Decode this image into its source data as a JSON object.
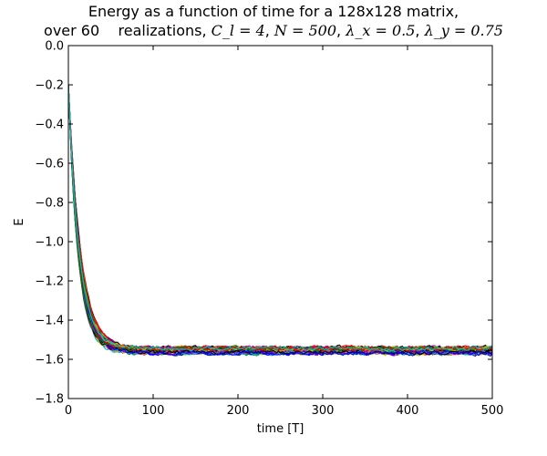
{
  "chart_data": {
    "type": "line",
    "title_line1": "Energy as a function of time for a 128x128 matrix,",
    "title_line2": {
      "prefix": "over 60    realizations, ",
      "params": [
        "C_l = 4",
        "N = 500",
        "λ_x = 0.5",
        "λ_y = 0.75"
      ]
    },
    "xlabel": "time [T]",
    "ylabel": "E",
    "xlim": [
      0,
      500
    ],
    "ylim": [
      -1.8,
      0.0
    ],
    "xticks": [
      0,
      100,
      200,
      300,
      400,
      500
    ],
    "xtick_labels": [
      "0",
      "100",
      "200",
      "300",
      "400",
      "500"
    ],
    "yticks": [
      0.0,
      -0.2,
      -0.4,
      -0.6,
      -0.8,
      -1.0,
      -1.2,
      -1.4,
      -1.6,
      -1.8
    ],
    "ytick_labels": [
      "0.0",
      "−0.2",
      "−0.4",
      "−0.6",
      "−0.8",
      "−1.0",
      "−1.2",
      "−1.4",
      "−1.6",
      "−1.8"
    ],
    "grid": false,
    "legend": "none",
    "num_series": 60,
    "series_model": {
      "initial_value": -0.2,
      "plateau_value": -1.555,
      "decay_time": 13,
      "noise_amplitude": 0.018
    },
    "representative_points": [
      {
        "x": 0,
        "y": -0.2
      },
      {
        "x": 5,
        "y": -0.68
      },
      {
        "x": 10,
        "y": -0.95
      },
      {
        "x": 20,
        "y": -1.25
      },
      {
        "x": 30,
        "y": -1.4
      },
      {
        "x": 50,
        "y": -1.5
      },
      {
        "x": 100,
        "y": -1.55
      },
      {
        "x": 200,
        "y": -1.56
      },
      {
        "x": 300,
        "y": -1.56
      },
      {
        "x": 400,
        "y": -1.56
      },
      {
        "x": 500,
        "y": -1.56
      }
    ],
    "series_colors": [
      "#0000ff",
      "#008000",
      "#ff0000",
      "#00bfbf",
      "#bf00bf",
      "#bfbf00",
      "#000000"
    ]
  }
}
